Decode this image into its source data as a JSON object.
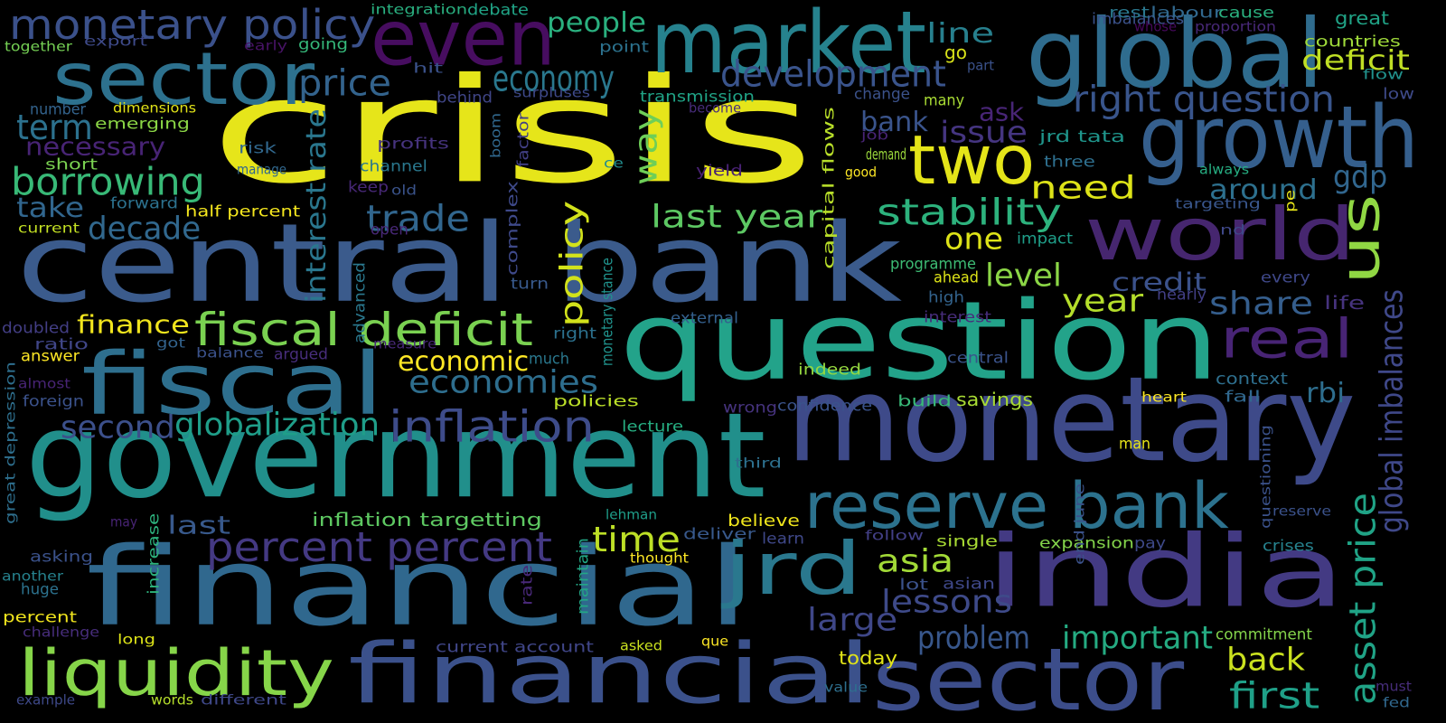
{
  "words": [
    {
      "text": "crisis",
      "color": "#e6e51a"
    },
    {
      "text": "central bank",
      "color": "#3b5b8c"
    },
    {
      "text": "question",
      "color": "#23a38a"
    },
    {
      "text": "government",
      "color": "#218f8b"
    },
    {
      "text": "financial",
      "color": "#30688e"
    },
    {
      "text": "monetary",
      "color": "#3e4a89"
    },
    {
      "text": "india",
      "color": "#433a83"
    },
    {
      "text": "financial",
      "color": "#3b518b"
    },
    {
      "text": "sector",
      "color": "#3c4d8a"
    },
    {
      "text": "fiscal",
      "color": "#2e6f8e"
    },
    {
      "text": "global",
      "color": "#2f6c8e"
    },
    {
      "text": "market",
      "color": "#26828e"
    },
    {
      "text": "sector",
      "color": "#2d718e"
    },
    {
      "text": "even",
      "color": "#470d60"
    },
    {
      "text": "growth",
      "color": "#355f8d"
    },
    {
      "text": "two",
      "color": "#e4e419"
    },
    {
      "text": "world",
      "color": "#46266f"
    },
    {
      "text": "us",
      "color": "#90d743"
    },
    {
      "text": "reserve bank",
      "color": "#2c728e"
    },
    {
      "text": "jrd",
      "color": "#2a788e"
    },
    {
      "text": "liquidity",
      "color": "#86d549"
    },
    {
      "text": "fiscal deficit",
      "color": "#7ad151"
    },
    {
      "text": "monetary policy",
      "color": "#3b518b"
    },
    {
      "text": "real",
      "color": "#482475"
    },
    {
      "text": "inflation",
      "color": "#3e4c8a"
    },
    {
      "text": "percent percent",
      "color": "#443983"
    },
    {
      "text": "development",
      "color": "#3a548c"
    },
    {
      "text": "economy",
      "color": "#2a788e"
    },
    {
      "text": "right question",
      "color": "#39558c"
    },
    {
      "text": "price",
      "color": "#33638d"
    },
    {
      "text": "last year",
      "color": "#5dc863"
    },
    {
      "text": "trade",
      "color": "#31668e"
    },
    {
      "text": "stability",
      "color": "#2db27d"
    },
    {
      "text": "borrowing",
      "color": "#38b977"
    },
    {
      "text": "decade",
      "color": "#31688e"
    },
    {
      "text": "time",
      "color": "#bddf26"
    },
    {
      "text": "policy",
      "color": "#d2e21b"
    },
    {
      "text": "way",
      "color": "#6ece58"
    },
    {
      "text": "large",
      "color": "#3f4788"
    },
    {
      "text": "asset price",
      "color": "#20a386"
    },
    {
      "text": "global imbalances",
      "color": "#3f4889"
    },
    {
      "text": "lessons",
      "color": "#3e4a89"
    },
    {
      "text": "term",
      "color": "#2c718e"
    },
    {
      "text": "second",
      "color": "#3c508b"
    },
    {
      "text": "globalization",
      "color": "#1f9e89"
    },
    {
      "text": "economies",
      "color": "#2e6e8e"
    },
    {
      "text": "back",
      "color": "#cae11f"
    },
    {
      "text": "first",
      "color": "#1fa088"
    },
    {
      "text": "important",
      "color": "#25ab82"
    },
    {
      "text": "problem",
      "color": "#38578c"
    },
    {
      "text": "year",
      "color": "#b5de2b"
    },
    {
      "text": "asia",
      "color": "#a2da37"
    },
    {
      "text": "level",
      "color": "#8bd646"
    },
    {
      "text": "need",
      "color": "#dde318"
    },
    {
      "text": "one",
      "color": "#dde318"
    },
    {
      "text": "share",
      "color": "#355e8d"
    },
    {
      "text": "gdp",
      "color": "#31668e"
    },
    {
      "text": "around",
      "color": "#2d708e"
    },
    {
      "text": "rbi",
      "color": "#2e6e8e"
    },
    {
      "text": "issue",
      "color": "#453581"
    },
    {
      "text": "bank",
      "color": "#3a548c"
    },
    {
      "text": "ask",
      "color": "#482576"
    },
    {
      "text": "line",
      "color": "#27808e"
    },
    {
      "text": "people",
      "color": "#2ab07f"
    },
    {
      "text": "necessary",
      "color": "#482475"
    },
    {
      "text": "take",
      "color": "#31668e"
    },
    {
      "text": "finance",
      "color": "#f1e51d"
    },
    {
      "text": "economic",
      "color": "#fde725"
    },
    {
      "text": "last",
      "color": "#38598c"
    },
    {
      "text": "credit",
      "color": "#3b528b"
    },
    {
      "text": "deficit",
      "color": "#c0df25"
    },
    {
      "text": "interest rate",
      "color": "#2a778e"
    },
    {
      "text": "inflation targetting",
      "color": "#5ec962"
    },
    {
      "text": "current account",
      "color": "#404688"
    },
    {
      "text": "today",
      "color": "#e2e418"
    },
    {
      "text": "jrd tata",
      "color": "#1f958b"
    },
    {
      "text": "savings",
      "color": "#a8db34"
    },
    {
      "text": "context",
      "color": "#2e6f8e"
    },
    {
      "text": "expansion",
      "color": "#84d44b"
    },
    {
      "text": "half percent",
      "color": "#f4e61e"
    },
    {
      "text": "capital flows",
      "color": "#b8de29"
    },
    {
      "text": "monetary stance",
      "color": "#20928c"
    },
    {
      "text": "great depression",
      "color": "#2e6f8e"
    },
    {
      "text": "end june",
      "color": "#3b528b"
    },
    {
      "text": "confidence",
      "color": "#3a538b"
    },
    {
      "text": "believe",
      "color": "#efe51c"
    },
    {
      "text": "policies",
      "color": "#bade28"
    },
    {
      "text": "deliver",
      "color": "#38598c"
    },
    {
      "text": "build",
      "color": "#38b977"
    },
    {
      "text": "indeed",
      "color": "#95d840"
    },
    {
      "text": "emerging",
      "color": "#8bd646"
    },
    {
      "text": "dimensions",
      "color": "#e2e418"
    },
    {
      "text": "transmission",
      "color": "#20a386"
    },
    {
      "text": "integration",
      "color": "#29af7f"
    },
    {
      "text": "debate",
      "color": "#20a486"
    },
    {
      "text": "imbalances",
      "color": "#3b528b"
    },
    {
      "text": "labour",
      "color": "#31688e"
    },
    {
      "text": "cause",
      "color": "#2ab07f"
    },
    {
      "text": "great",
      "color": "#20a386"
    },
    {
      "text": "countries",
      "color": "#9fda3a"
    },
    {
      "text": "together",
      "color": "#75d054"
    },
    {
      "text": "export",
      "color": "#3e4a89"
    },
    {
      "text": "early",
      "color": "#471365"
    },
    {
      "text": "going",
      "color": "#35b779"
    },
    {
      "text": "rest",
      "color": "#2a788e"
    },
    {
      "text": "whose",
      "color": "#46085c"
    },
    {
      "text": "proportion",
      "color": "#482878"
    },
    {
      "text": "flow",
      "color": "#21918c"
    },
    {
      "text": "low",
      "color": "#3e4a89"
    },
    {
      "text": "go",
      "color": "#d8e219"
    },
    {
      "text": "part",
      "color": "#3b528b"
    },
    {
      "text": "point",
      "color": "#2c728e"
    },
    {
      "text": "hit",
      "color": "#3b528b"
    },
    {
      "text": "behind",
      "color": "#404688"
    },
    {
      "text": "surpluses",
      "color": "#3e4989"
    },
    {
      "text": "change",
      "color": "#3b528b"
    },
    {
      "text": "many",
      "color": "#a8db34"
    },
    {
      "text": "become",
      "color": "#472c7a"
    },
    {
      "text": "number",
      "color": "#33638d"
    },
    {
      "text": "risk",
      "color": "#31688e"
    },
    {
      "text": "profits",
      "color": "#46337e"
    },
    {
      "text": "boom",
      "color": "#31688e"
    },
    {
      "text": "factor",
      "color": "#424086"
    },
    {
      "text": "job",
      "color": "#482475"
    },
    {
      "text": "demand",
      "color": "#9bd93c"
    },
    {
      "text": "three",
      "color": "#2e6f8e"
    },
    {
      "text": "always",
      "color": "#26ad81"
    },
    {
      "text": "short",
      "color": "#7ad151"
    },
    {
      "text": "manage",
      "color": "#31688e"
    },
    {
      "text": "channel",
      "color": "#2a788e"
    },
    {
      "text": "ce",
      "color": "#228c8d"
    },
    {
      "text": "yield",
      "color": "#482173"
    },
    {
      "text": "good",
      "color": "#fde725"
    },
    {
      "text": "forward",
      "color": "#2c718e"
    },
    {
      "text": "keep",
      "color": "#482878"
    },
    {
      "text": "old",
      "color": "#3a538b"
    },
    {
      "text": "complex",
      "color": "#3e4989"
    },
    {
      "text": "targeting",
      "color": "#39568c"
    },
    {
      "text": "pe",
      "color": "#e7e419"
    },
    {
      "text": "current",
      "color": "#c2df23"
    },
    {
      "text": "open",
      "color": "#482878"
    },
    {
      "text": "impact",
      "color": "#1f9e89"
    },
    {
      "text": "nd",
      "color": "#3f4889"
    },
    {
      "text": "programme",
      "color": "#3dbc74"
    },
    {
      "text": "ahead",
      "color": "#dde318"
    },
    {
      "text": "every",
      "color": "#3f4889"
    },
    {
      "text": "turn",
      "color": "#38598c"
    },
    {
      "text": "high",
      "color": "#33638d"
    },
    {
      "text": "nearly",
      "color": "#423f85"
    },
    {
      "text": "life",
      "color": "#46337e"
    },
    {
      "text": "doubled",
      "color": "#433e85"
    },
    {
      "text": "advanced",
      "color": "#2a788e"
    },
    {
      "text": "external",
      "color": "#34608d"
    },
    {
      "text": "interest",
      "color": "#472d7b"
    },
    {
      "text": "ratio",
      "color": "#404688"
    },
    {
      "text": "got",
      "color": "#33638d"
    },
    {
      "text": "answer",
      "color": "#fde725"
    },
    {
      "text": "balance",
      "color": "#3b528b"
    },
    {
      "text": "argued",
      "color": "#472d7b"
    },
    {
      "text": "measure",
      "color": "#482878"
    },
    {
      "text": "right",
      "color": "#2c718e"
    },
    {
      "text": "central",
      "color": "#3a538b"
    },
    {
      "text": "much",
      "color": "#2a788e"
    },
    {
      "text": "almost",
      "color": "#482475"
    },
    {
      "text": "foreign",
      "color": "#3b528b"
    },
    {
      "text": "wrong",
      "color": "#46337e"
    },
    {
      "text": "heart",
      "color": "#fde725"
    },
    {
      "text": "fall",
      "color": "#31688e"
    },
    {
      "text": "lecture",
      "color": "#26ad81"
    },
    {
      "text": "man",
      "color": "#e7e419"
    },
    {
      "text": "third",
      "color": "#2d708e"
    },
    {
      "text": "questioning",
      "color": "#3b528b"
    },
    {
      "text": "reserve",
      "color": "#3b528b"
    },
    {
      "text": "may",
      "color": "#482475"
    },
    {
      "text": "lehman",
      "color": "#1f9e89"
    },
    {
      "text": "learn",
      "color": "#3f4889"
    },
    {
      "text": "follow",
      "color": "#423f85"
    },
    {
      "text": "single",
      "color": "#a8db34"
    },
    {
      "text": "pay",
      "color": "#3e4989"
    },
    {
      "text": "crises",
      "color": "#26828e"
    },
    {
      "text": "asking",
      "color": "#3b528b"
    },
    {
      "text": "increase",
      "color": "#2db27d"
    },
    {
      "text": "thought",
      "color": "#fde725"
    },
    {
      "text": "maintain",
      "color": "#22a785"
    },
    {
      "text": "another",
      "color": "#26828e"
    },
    {
      "text": "huge",
      "color": "#2c728e"
    },
    {
      "text": "rate",
      "color": "#482878"
    },
    {
      "text": "lot",
      "color": "#3b528b"
    },
    {
      "text": "asian",
      "color": "#3f4889"
    },
    {
      "text": "percent",
      "color": "#f1e51d"
    },
    {
      "text": "challenge",
      "color": "#472d7b"
    },
    {
      "text": "long",
      "color": "#dde318"
    },
    {
      "text": "asked",
      "color": "#cae11f"
    },
    {
      "text": "que",
      "color": "#fde725"
    },
    {
      "text": "commitment",
      "color": "#84d44b"
    },
    {
      "text": "value",
      "color": "#2e6f8e"
    },
    {
      "text": "must",
      "color": "#472d7b"
    },
    {
      "text": "fed",
      "color": "#31688e"
    },
    {
      "text": "example",
      "color": "#3e4989"
    },
    {
      "text": "words",
      "color": "#b5de2b"
    },
    {
      "text": "different",
      "color": "#3f4889"
    }
  ]
}
